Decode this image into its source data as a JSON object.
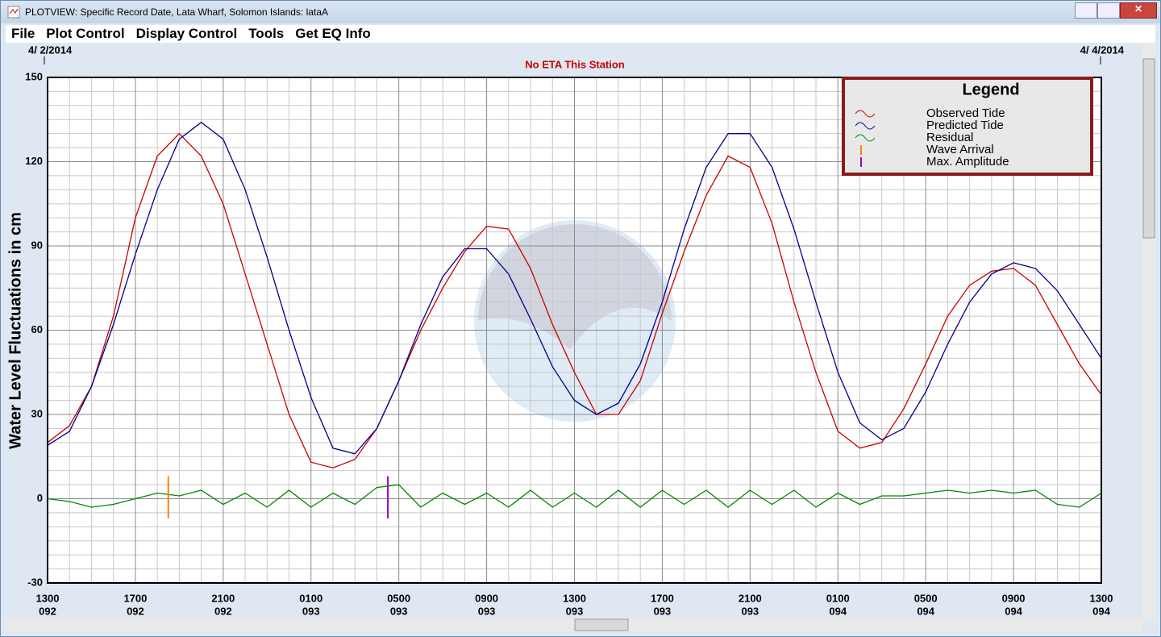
{
  "window": {
    "title": "PLOTVIEW: Specific Record Date, Lata Wharf, Solomon Islands: lataA",
    "menu": [
      "File",
      "Plot Control",
      "Display Control",
      "Tools",
      "Get EQ Info"
    ]
  },
  "chart_data": {
    "type": "line",
    "subtitle": "No ETA This Station",
    "start_date": "4/ 2/2014",
    "end_date": "4/ 4/2014",
    "y_label": "Water Level Fluctuations in cm",
    "legend_title": "Legend",
    "x": [
      0,
      1,
      2,
      3,
      4,
      5,
      6,
      7,
      8,
      9,
      10,
      11,
      12,
      13,
      14,
      15,
      16,
      17,
      18,
      19,
      20,
      21,
      22,
      23,
      24,
      25,
      26,
      27,
      28,
      29,
      30,
      31,
      32,
      33,
      34,
      35,
      36,
      37,
      38,
      39,
      40,
      41,
      42,
      43,
      44,
      45,
      46,
      47,
      48
    ],
    "xlim": [
      0,
      48
    ],
    "xticks": [
      {
        "value": 0,
        "label": [
          "1300",
          "092"
        ]
      },
      {
        "value": 4,
        "label": [
          "1700",
          "092"
        ]
      },
      {
        "value": 8,
        "label": [
          "2100",
          "092"
        ]
      },
      {
        "value": 12,
        "label": [
          "0100",
          "093"
        ]
      },
      {
        "value": 16,
        "label": [
          "0500",
          "093"
        ]
      },
      {
        "value": 20,
        "label": [
          "0900",
          "093"
        ]
      },
      {
        "value": 24,
        "label": [
          "1300",
          "093"
        ]
      },
      {
        "value": 28,
        "label": [
          "1700",
          "093"
        ]
      },
      {
        "value": 32,
        "label": [
          "2100",
          "093"
        ]
      },
      {
        "value": 36,
        "label": [
          "0100",
          "094"
        ]
      },
      {
        "value": 40,
        "label": [
          "0500",
          "094"
        ]
      },
      {
        "value": 44,
        "label": [
          "0900",
          "094"
        ]
      },
      {
        "value": 48,
        "label": [
          "1300",
          "094"
        ]
      }
    ],
    "ylim": [
      -30,
      150
    ],
    "yticks": [
      -30,
      0,
      30,
      60,
      90,
      120,
      150
    ],
    "grid": true,
    "series": [
      {
        "name": "Observed Tide",
        "color": "#cc0000",
        "values": [
          20,
          26,
          40,
          65,
          100,
          122,
          130,
          122,
          105,
          80,
          55,
          30,
          13,
          11,
          14,
          25,
          42,
          60,
          75,
          88,
          97,
          96,
          82,
          62,
          45,
          30,
          30,
          42,
          66,
          88,
          108,
          122,
          118,
          98,
          70,
          45,
          24,
          18,
          20,
          32,
          48,
          65,
          76,
          81,
          82,
          76,
          62,
          48,
          37
        ]
      },
      {
        "name": "Predicted Tide",
        "color": "#00008b",
        "values": [
          19,
          24,
          40,
          62,
          87,
          110,
          128,
          134,
          128,
          110,
          86,
          60,
          36,
          18,
          16,
          25,
          42,
          62,
          79,
          89,
          89,
          80,
          64,
          47,
          35,
          30,
          34,
          48,
          70,
          96,
          118,
          130,
          130,
          118,
          96,
          70,
          45,
          27,
          21,
          25,
          38,
          55,
          70,
          80,
          84,
          82,
          74,
          62,
          50
        ]
      },
      {
        "name": "Residual",
        "color": "#008800",
        "values": [
          0,
          -1,
          -3,
          -2,
          0,
          2,
          1,
          3,
          -2,
          2,
          -3,
          3,
          -3,
          2,
          -2,
          4,
          5,
          -3,
          2,
          -2,
          2,
          -3,
          3,
          -3,
          2,
          -3,
          3,
          -3,
          3,
          -2,
          3,
          -3,
          3,
          -2,
          3,
          -3,
          2,
          -2,
          1,
          1,
          2,
          3,
          2,
          3,
          2,
          3,
          -2,
          -3,
          2
        ]
      }
    ],
    "markers": [
      {
        "name": "Wave Arrival",
        "color": "#ff8000",
        "x": 5.5,
        "values": [
          8,
          -7
        ]
      },
      {
        "name": "Max. Amplitude",
        "color": "#a000c0",
        "x": 15.5,
        "values": [
          8,
          -7
        ]
      }
    ]
  }
}
